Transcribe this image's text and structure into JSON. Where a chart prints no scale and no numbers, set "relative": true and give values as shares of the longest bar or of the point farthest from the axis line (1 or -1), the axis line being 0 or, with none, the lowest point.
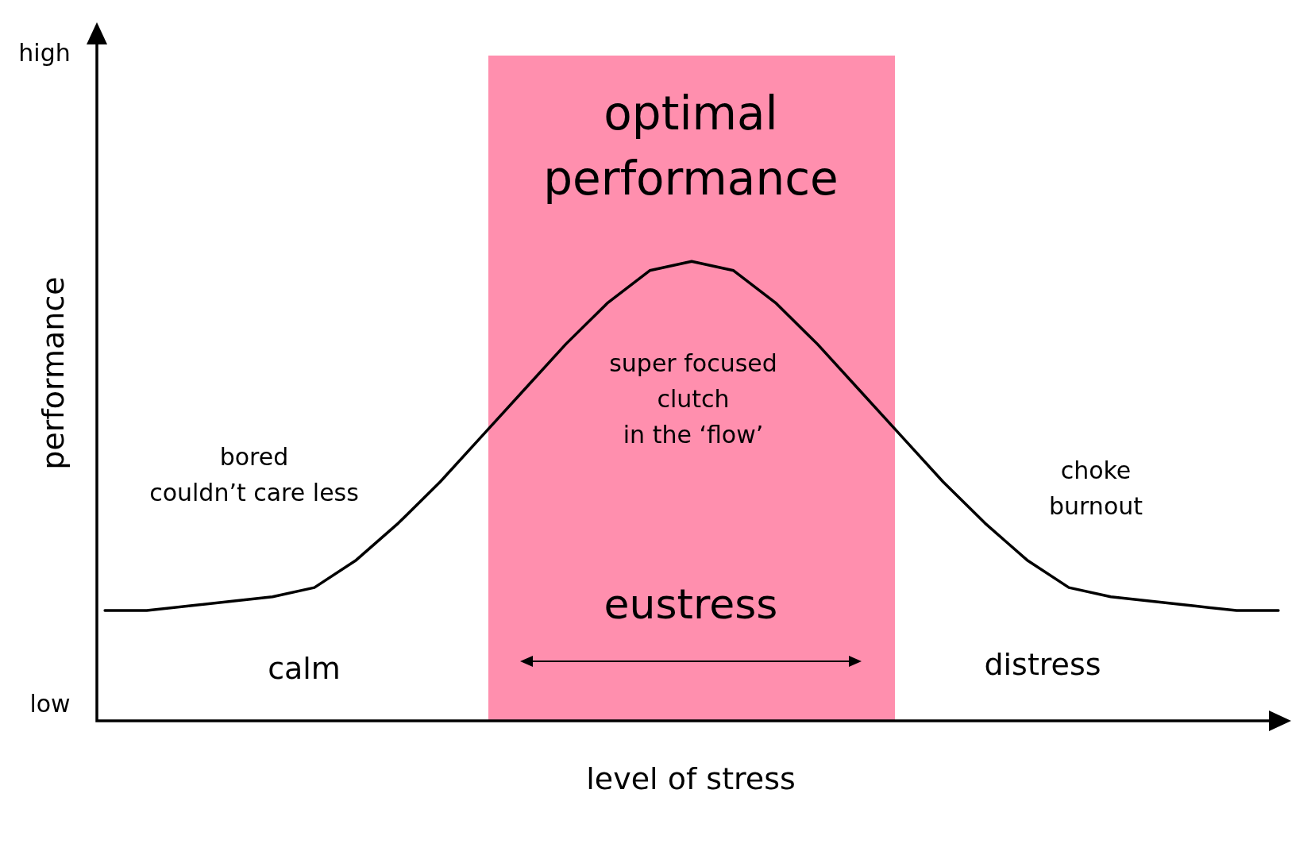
{
  "chart_data": {
    "type": "line",
    "relative": true,
    "xlabel": "level of stress",
    "ylabel": "performance",
    "categories": [
      null,
      null,
      null,
      null,
      null,
      null,
      null,
      null,
      null,
      null,
      null,
      null,
      null,
      null,
      null,
      null,
      null,
      null,
      null,
      null,
      null,
      null,
      null,
      null,
      null,
      null,
      null,
      null,
      null
    ],
    "line_style": "solid",
    "series": [
      {
        "color": "#000000",
        "values": [
          0.24,
          0.24,
          0.25,
          0.26,
          0.27,
          0.29,
          0.35,
          0.43,
          0.52,
          0.62,
          0.72,
          0.82,
          0.91,
          0.98,
          1,
          0.98,
          0.91,
          0.82,
          0.72,
          0.62,
          0.52,
          0.43,
          0.35,
          0.29,
          0.27,
          0.26,
          0.25,
          0.24,
          0.24
        ]
      }
    ],
    "annotations": [
      "high",
      "low",
      "bored\ncouldn’t care less",
      "calm",
      "super focused\nclutch\nin the ‘flow’",
      "eustress",
      "choke\nburnout",
      "distress",
      "optimal\nperformance"
    ]
  }
}
